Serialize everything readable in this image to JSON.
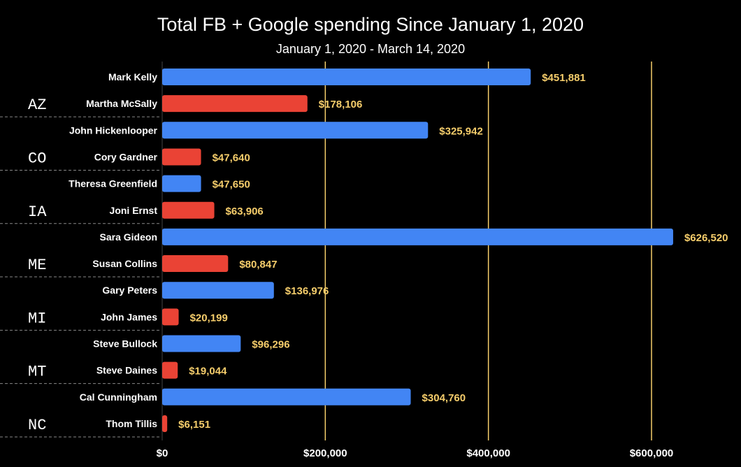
{
  "chart_data": {
    "type": "bar",
    "orientation": "horizontal",
    "title": "Total FB + Google spending Since January 1, 2020",
    "subtitle": "January 1, 2020 - March 14, 2020",
    "xlim": [
      0,
      650000
    ],
    "x_ticks": [
      0,
      200000,
      400000,
      600000
    ],
    "x_tick_labels": [
      "$0",
      "$200,000",
      "$400,000",
      "$600,000"
    ],
    "gridlines": "vertical",
    "groups": [
      {
        "state": "AZ",
        "bars": [
          {
            "name": "Mark Kelly",
            "value": 451881,
            "label": "$451,881",
            "party": "D"
          },
          {
            "name": "Martha McSally",
            "value": 178106,
            "label": "$178,106",
            "party": "R"
          }
        ]
      },
      {
        "state": "CO",
        "bars": [
          {
            "name": "John Hickenlooper",
            "value": 325942,
            "label": "$325,942",
            "party": "D"
          },
          {
            "name": "Cory Gardner",
            "value": 47640,
            "label": "$47,640",
            "party": "R"
          }
        ]
      },
      {
        "state": "IA",
        "bars": [
          {
            "name": "Theresa Greenfield",
            "value": 47650,
            "label": "$47,650",
            "party": "D"
          },
          {
            "name": "Joni Ernst",
            "value": 63906,
            "label": "$63,906",
            "party": "R"
          }
        ]
      },
      {
        "state": "ME",
        "bars": [
          {
            "name": "Sara Gideon",
            "value": 626520,
            "label": "$626,520",
            "party": "D"
          },
          {
            "name": "Susan Collins",
            "value": 80847,
            "label": "$80,847",
            "party": "R"
          }
        ]
      },
      {
        "state": "MI",
        "bars": [
          {
            "name": "Gary Peters",
            "value": 136976,
            "label": "$136,976",
            "party": "D"
          },
          {
            "name": "John James",
            "value": 20199,
            "label": "$20,199",
            "party": "R"
          }
        ]
      },
      {
        "state": "MT",
        "bars": [
          {
            "name": "Steve Bullock",
            "value": 96296,
            "label": "$96,296",
            "party": "D"
          },
          {
            "name": "Steve Daines",
            "value": 19044,
            "label": "$19,044",
            "party": "R"
          }
        ]
      },
      {
        "state": "NC",
        "bars": [
          {
            "name": "Cal Cunningham",
            "value": 304760,
            "label": "$304,760",
            "party": "D"
          },
          {
            "name": "Thom Tillis",
            "value": 6151,
            "label": "$6,151",
            "party": "R"
          }
        ]
      }
    ],
    "colors": {
      "D": "#4285f4",
      "R": "#ea4335",
      "value_label": "#f5cd6b",
      "gridline": "#f5cd6b",
      "divider": "#888888",
      "background": "#000000",
      "text": "#ffffff"
    }
  }
}
